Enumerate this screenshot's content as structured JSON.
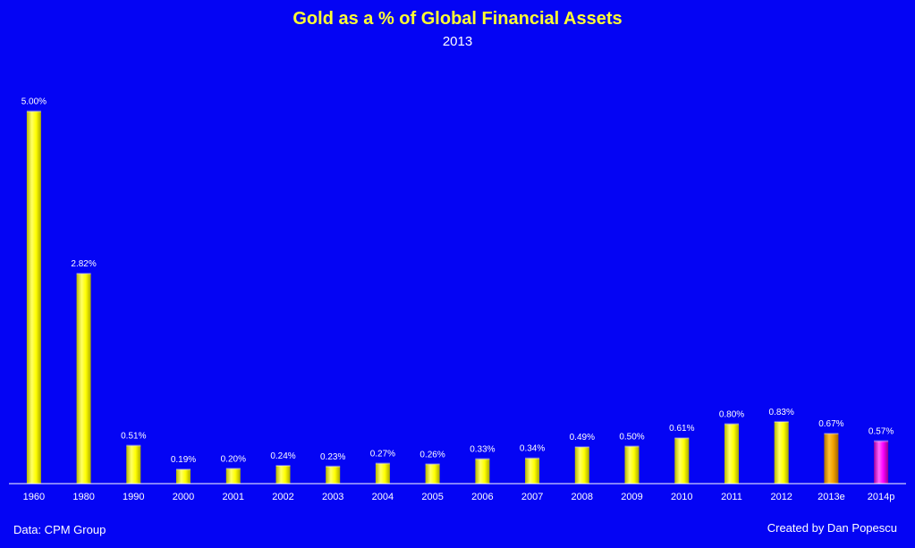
{
  "chart_data": {
    "type": "bar",
    "title": "Gold as a % of Global Financial Assets",
    "subtitle": "2013",
    "xlabel": "",
    "ylabel": "",
    "ylim": [
      0,
      5.5
    ],
    "categories": [
      "1960",
      "1980",
      "1990",
      "2000",
      "2001",
      "2002",
      "2003",
      "2004",
      "2005",
      "2006",
      "2007",
      "2008",
      "2009",
      "2010",
      "2011",
      "2012",
      "2013e",
      "2014p"
    ],
    "values": [
      5.0,
      2.82,
      0.51,
      0.19,
      0.2,
      0.24,
      0.23,
      0.27,
      0.26,
      0.33,
      0.34,
      0.49,
      0.5,
      0.61,
      0.8,
      0.83,
      0.67,
      0.57
    ],
    "data_labels": [
      "5.00%",
      "2.82%",
      "0.51%",
      "0.19%",
      "0.20%",
      "0.24%",
      "0.23%",
      "0.27%",
      "0.26%",
      "0.33%",
      "0.34%",
      "0.49%",
      "0.50%",
      "0.61%",
      "0.80%",
      "0.83%",
      "0.67%",
      "0.57%"
    ],
    "bar_colors": [
      "#ffff00",
      "#ffff00",
      "#ffff00",
      "#ffff00",
      "#ffff00",
      "#ffff00",
      "#ffff00",
      "#ffff00",
      "#ffff00",
      "#ffff00",
      "#ffff00",
      "#ffff00",
      "#ffff00",
      "#ffff00",
      "#ffff00",
      "#ffff00",
      "#f0a000",
      "#ff00ff"
    ],
    "grid": false,
    "legend": "none"
  },
  "footer": {
    "source": "Data: CPM Group",
    "credit": "Created by Dan Popescu"
  },
  "colors": {
    "background": "#0404f4",
    "title": "#ffff33",
    "text": "#ffffff",
    "axis": "#ffffff"
  }
}
